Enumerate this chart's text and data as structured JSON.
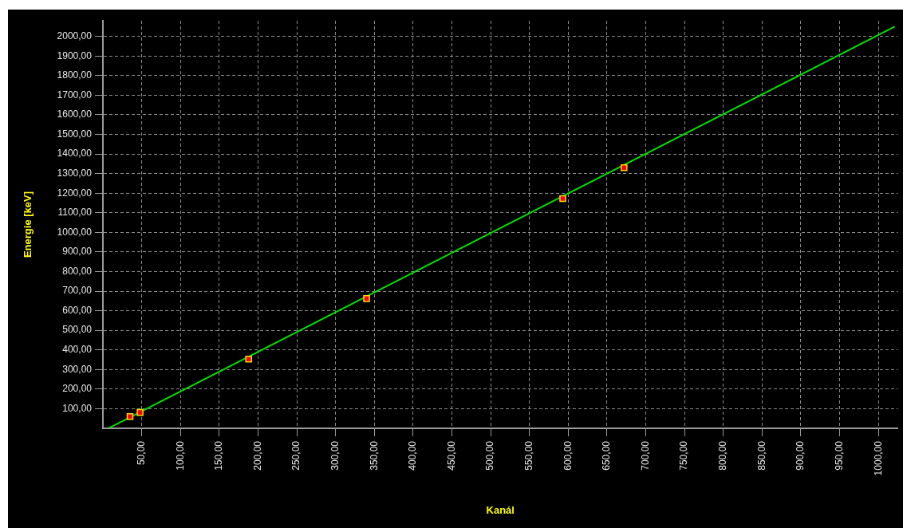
{
  "chart_data": {
    "type": "scatter",
    "xlabel": "Kanál",
    "ylabel": "Energie [keV]",
    "xlim": [
      0,
      1025
    ],
    "ylim": [
      0,
      2080
    ],
    "xticks": [
      {
        "value": 50,
        "label": "50,00"
      },
      {
        "value": 100,
        "label": "100,00"
      },
      {
        "value": 150,
        "label": "150,00"
      },
      {
        "value": 200,
        "label": "200,00"
      },
      {
        "value": 250,
        "label": "250,00"
      },
      {
        "value": 300,
        "label": "300,00"
      },
      {
        "value": 350,
        "label": "350,00"
      },
      {
        "value": 400,
        "label": "400,00"
      },
      {
        "value": 450,
        "label": "450,00"
      },
      {
        "value": 500,
        "label": "500,00"
      },
      {
        "value": 550,
        "label": "550,00"
      },
      {
        "value": 600,
        "label": "600,00"
      },
      {
        "value": 650,
        "label": "650,00"
      },
      {
        "value": 700,
        "label": "700,00"
      },
      {
        "value": 750,
        "label": "750,00"
      },
      {
        "value": 800,
        "label": "800,00"
      },
      {
        "value": 850,
        "label": "850,00"
      },
      {
        "value": 900,
        "label": "900,00"
      },
      {
        "value": 950,
        "label": "950,00"
      },
      {
        "value": 1000,
        "label": "1000,00"
      }
    ],
    "yticks": [
      {
        "value": 100,
        "label": "100,00"
      },
      {
        "value": 200,
        "label": "200,00"
      },
      {
        "value": 300,
        "label": "300,00"
      },
      {
        "value": 400,
        "label": "400,00"
      },
      {
        "value": 500,
        "label": "500,00"
      },
      {
        "value": 600,
        "label": "600,00"
      },
      {
        "value": 700,
        "label": "700,00"
      },
      {
        "value": 800,
        "label": "800,00"
      },
      {
        "value": 900,
        "label": "900,00"
      },
      {
        "value": 1000,
        "label": "1000,00"
      },
      {
        "value": 1100,
        "label": "1100,00"
      },
      {
        "value": 1200,
        "label": "1200,00"
      },
      {
        "value": 1300,
        "label": "1300,00"
      },
      {
        "value": 1400,
        "label": "1400,00"
      },
      {
        "value": 1500,
        "label": "1500,00"
      },
      {
        "value": 1600,
        "label": "1600,00"
      },
      {
        "value": 1700,
        "label": "1700,00"
      },
      {
        "value": 1800,
        "label": "1800,00"
      },
      {
        "value": 1900,
        "label": "1900,00"
      },
      {
        "value": 2000,
        "label": "2000,00"
      }
    ],
    "grid": true,
    "legend": false,
    "series": [
      {
        "type": "line",
        "color": "#00e000",
        "marker": "none",
        "line_style": "solid",
        "x": [
          7,
          1021
        ],
        "values": [
          0,
          2050
        ]
      },
      {
        "color": "#ff0000",
        "marker": "square",
        "x": [
          35,
          48,
          188,
          340,
          593,
          672
        ],
        "values": [
          60,
          81,
          353,
          662,
          1172,
          1330
        ]
      }
    ]
  }
}
